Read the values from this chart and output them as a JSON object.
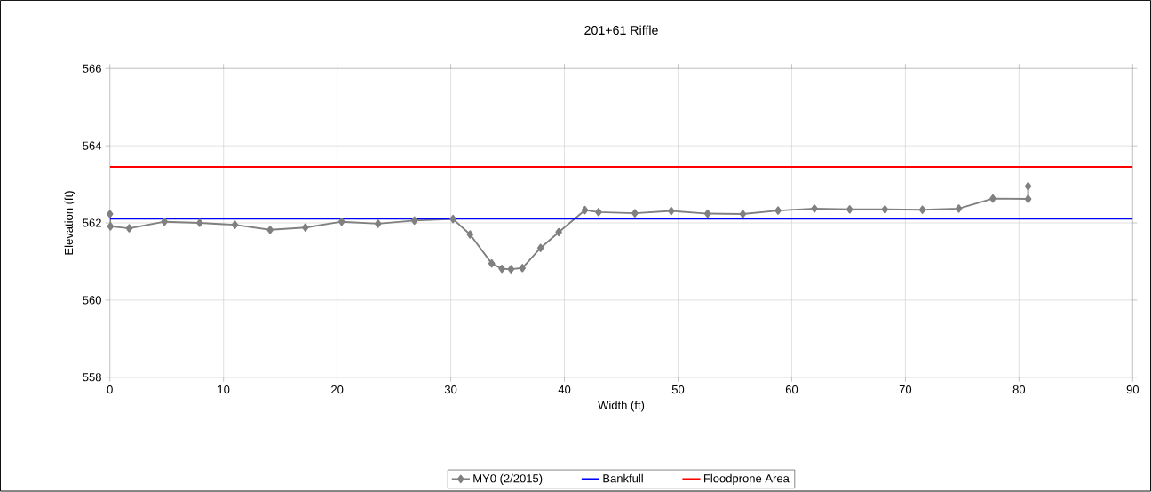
{
  "chart_data": {
    "type": "line",
    "title": "201+61 Riffle",
    "xlabel": "Width (ft)",
    "ylabel": "Elevation (ft)",
    "xlim": [
      0,
      90
    ],
    "ylim": [
      558,
      566
    ],
    "xticks": [
      0,
      10,
      20,
      30,
      40,
      50,
      60,
      70,
      80,
      90
    ],
    "yticks": [
      558,
      560,
      562,
      564,
      566
    ],
    "grid": true,
    "legend": "bottom",
    "series": [
      {
        "name": "MY0 (2/2015)",
        "color": "#808080",
        "marker": "diamond",
        "x": [
          0,
          0.05,
          1.7,
          4.8,
          7.9,
          11.0,
          14.1,
          17.2,
          20.4,
          23.6,
          26.8,
          30.2,
          31.7,
          33.6,
          34.5,
          35.3,
          36.3,
          37.9,
          39.5,
          41.8,
          43.0,
          46.2,
          49.4,
          52.6,
          55.7,
          58.8,
          62.0,
          65.1,
          68.2,
          71.5,
          74.7,
          77.7,
          80.8,
          80.8
        ],
        "values": [
          562.23,
          561.91,
          561.86,
          562.03,
          562.0,
          561.95,
          561.82,
          561.88,
          562.03,
          561.98,
          562.06,
          562.1,
          561.7,
          560.95,
          560.81,
          560.8,
          560.83,
          561.35,
          561.76,
          562.33,
          562.28,
          562.25,
          562.31,
          562.24,
          562.23,
          562.32,
          562.37,
          562.35,
          562.35,
          562.34,
          562.37,
          562.63,
          562.62,
          562.95
        ]
      },
      {
        "name": "Bankfull",
        "color": "#0000ff",
        "marker": "none",
        "x": [
          0,
          90
        ],
        "values": [
          562.11,
          562.11
        ]
      },
      {
        "name": "Floodprone Area",
        "color": "#ff0000",
        "marker": "none",
        "x": [
          0,
          90
        ],
        "values": [
          563.45,
          563.45
        ]
      }
    ]
  }
}
